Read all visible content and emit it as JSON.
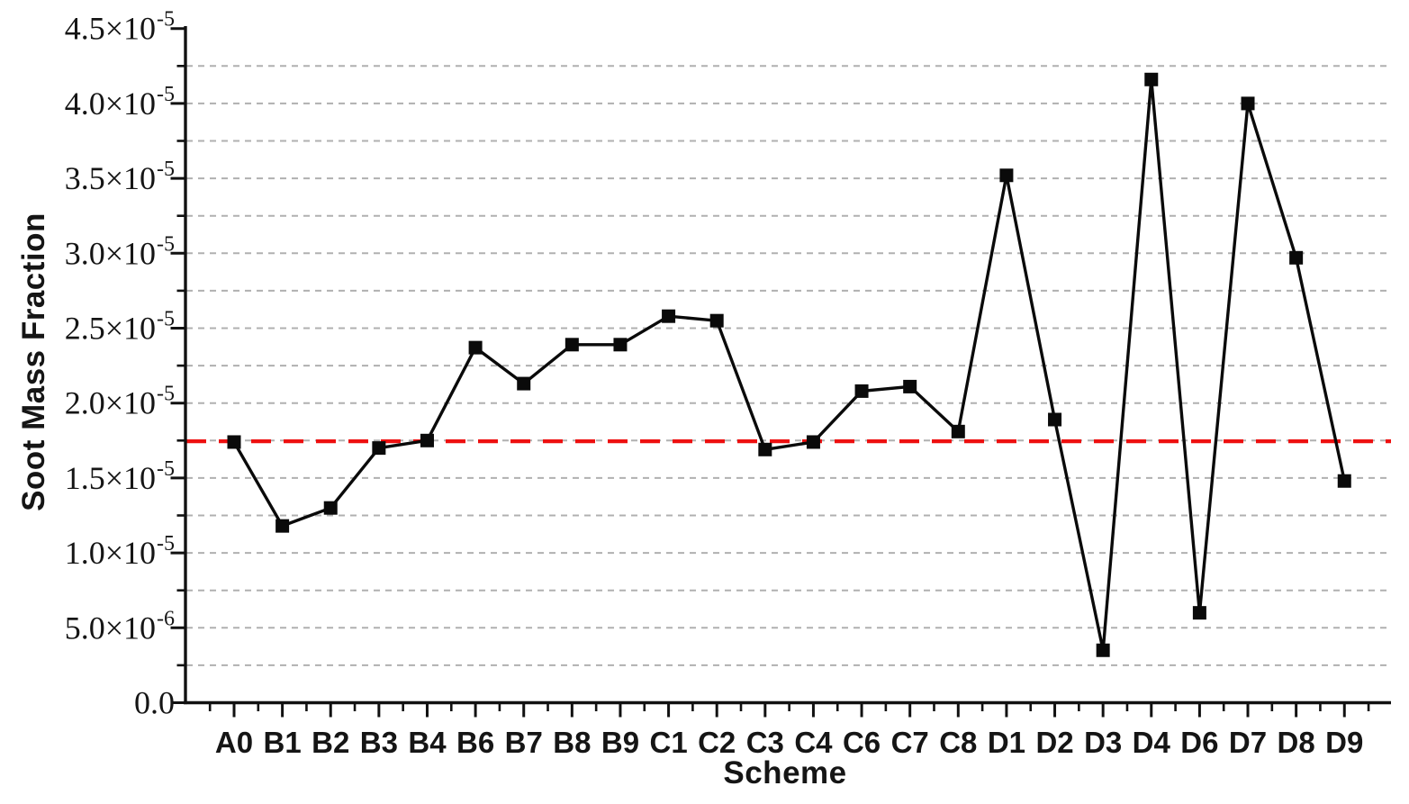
{
  "chart_data": {
    "type": "line",
    "title": "",
    "xlabel": "Scheme",
    "ylabel": "Soot Mass Fraction",
    "categories": [
      "A0",
      "B1",
      "B2",
      "B3",
      "B4",
      "B6",
      "B7",
      "B8",
      "B9",
      "C1",
      "C2",
      "C3",
      "C4",
      "C6",
      "C7",
      "C8",
      "D1",
      "D2",
      "D3",
      "D4",
      "D6",
      "D7",
      "D8",
      "D9"
    ],
    "series": [
      {
        "name": "soot-mass-fraction",
        "marker": "filled-square",
        "color": "#0a0a0a",
        "values": [
          1.74e-05,
          1.18e-05,
          1.3e-05,
          1.7e-05,
          1.75e-05,
          2.37e-05,
          2.13e-05,
          2.39e-05,
          2.39e-05,
          2.58e-05,
          2.55e-05,
          1.69e-05,
          1.74e-05,
          2.08e-05,
          2.11e-05,
          1.81e-05,
          3.52e-05,
          1.89e-05,
          3.5e-06,
          4.16e-05,
          6e-06,
          4e-05,
          2.97e-05,
          1.48e-05
        ]
      }
    ],
    "reference_line": {
      "value": 1.745e-05,
      "color": "#ee1010",
      "style": "dashed"
    },
    "ylim": [
      0,
      4.5e-05
    ],
    "y_major_step": 5e-06,
    "y_minor_step": 2.5e-06,
    "y_tick_labels": [
      "0.0",
      "5.0×10^-6",
      "1.0×10^-5",
      "1.5×10^-5",
      "2.0×10^-5",
      "2.5×10^-5",
      "3.0×10^-5",
      "3.5×10^-5",
      "4.0×10^-5",
      "4.5×10^-5"
    ],
    "grid": "horizontal dashed, minor every 2.5e-6",
    "legend": "none"
  },
  "colors": {
    "background": "#ffffff",
    "axis": "#111111",
    "text": "#151515",
    "grid": "#b0b0b0",
    "reference": "#ee1010",
    "series": "#0a0a0a"
  }
}
